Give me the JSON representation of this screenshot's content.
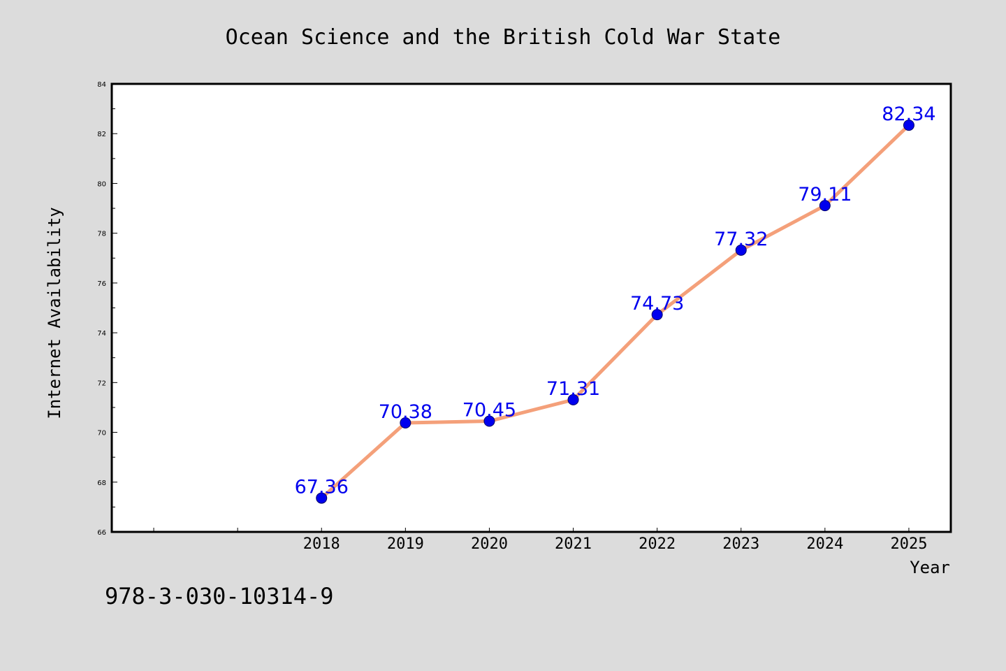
{
  "chart_data": {
    "type": "line",
    "title": "Ocean Science and the British Cold War State",
    "xlabel": "Year",
    "ylabel": "Internet Availability",
    "categories": [
      "2018",
      "2019",
      "2020",
      "2021",
      "2022",
      "2023",
      "2024",
      "2025"
    ],
    "x_axis_slots": 10,
    "first_category_slot": 2,
    "series": [
      {
        "values": [
          67.36,
          70.38,
          70.45,
          71.31,
          74.73,
          77.32,
          79.11,
          82.34
        ]
      }
    ],
    "data_labels": [
      "67.36",
      "70.38",
      "70.45",
      "71.31",
      "74.73",
      "77.32",
      "79.11",
      "82.34"
    ],
    "ylim": [
      66,
      84
    ],
    "yticks": [
      "66",
      "68",
      "70",
      "72",
      "74",
      "76",
      "78",
      "80",
      "82",
      "84"
    ],
    "grid": false,
    "legend": "none"
  },
  "footnote": "978-3-030-10314-9",
  "colors": {
    "background": "#dcdcdc",
    "plot_background": "#ffffff",
    "line": "#f4a07a",
    "marker": "#0000ee",
    "data_label": "#0000ee",
    "axis": "#000000"
  }
}
